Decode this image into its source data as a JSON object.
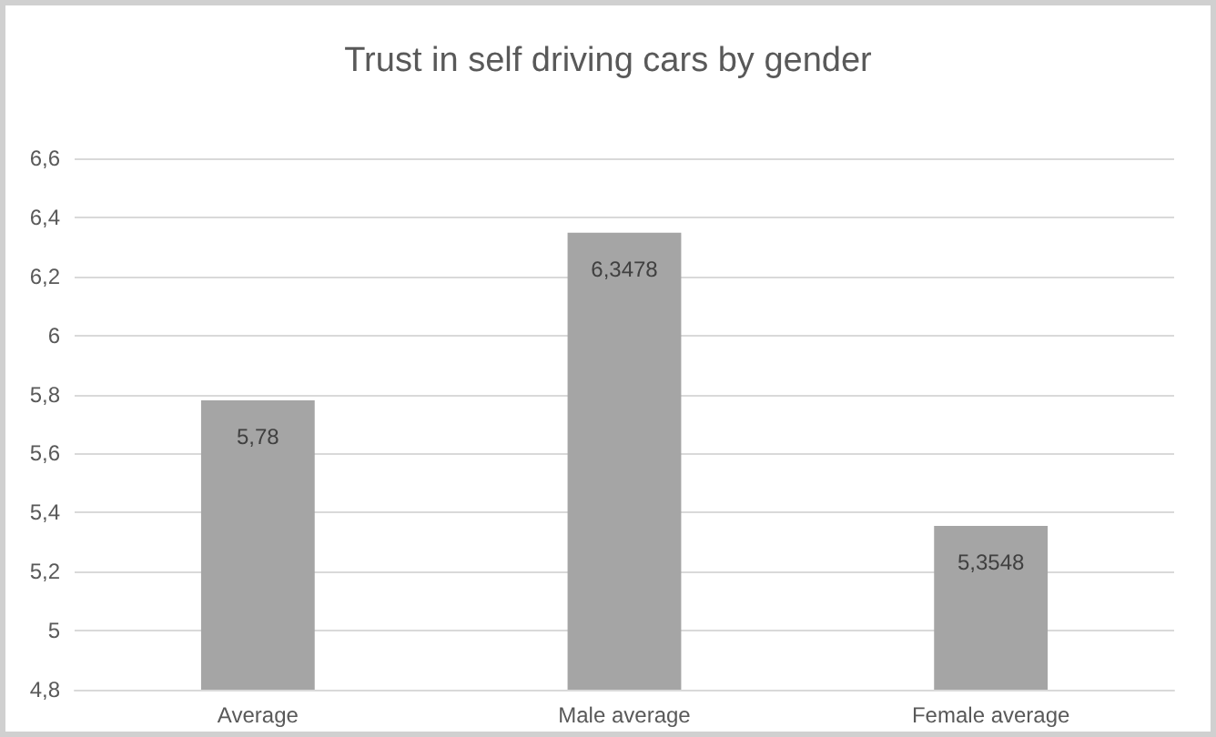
{
  "chart_data": {
    "type": "bar",
    "title": "Trust in self driving cars by gender",
    "categories": [
      "Average",
      "Male average",
      "Female average"
    ],
    "values": [
      5.78,
      6.3478,
      5.3548
    ],
    "value_labels": [
      "5,78",
      "6,3478",
      "5,3548"
    ],
    "color": "#a5a5a5",
    "ylim": [
      4.8,
      6.6
    ],
    "yticks": [
      {
        "value": 4.8,
        "label": "4,8"
      },
      {
        "value": 5,
        "label": "5"
      },
      {
        "value": 5.2,
        "label": "5,2"
      },
      {
        "value": 5.4,
        "label": "5,4"
      },
      {
        "value": 5.6,
        "label": "5,6"
      },
      {
        "value": 5.8,
        "label": "5,8"
      },
      {
        "value": 6,
        "label": "6"
      },
      {
        "value": 6.2,
        "label": "6,2"
      },
      {
        "value": 6.4,
        "label": "6,4"
      },
      {
        "value": 6.6,
        "label": "6,6"
      }
    ],
    "grid": true
  }
}
